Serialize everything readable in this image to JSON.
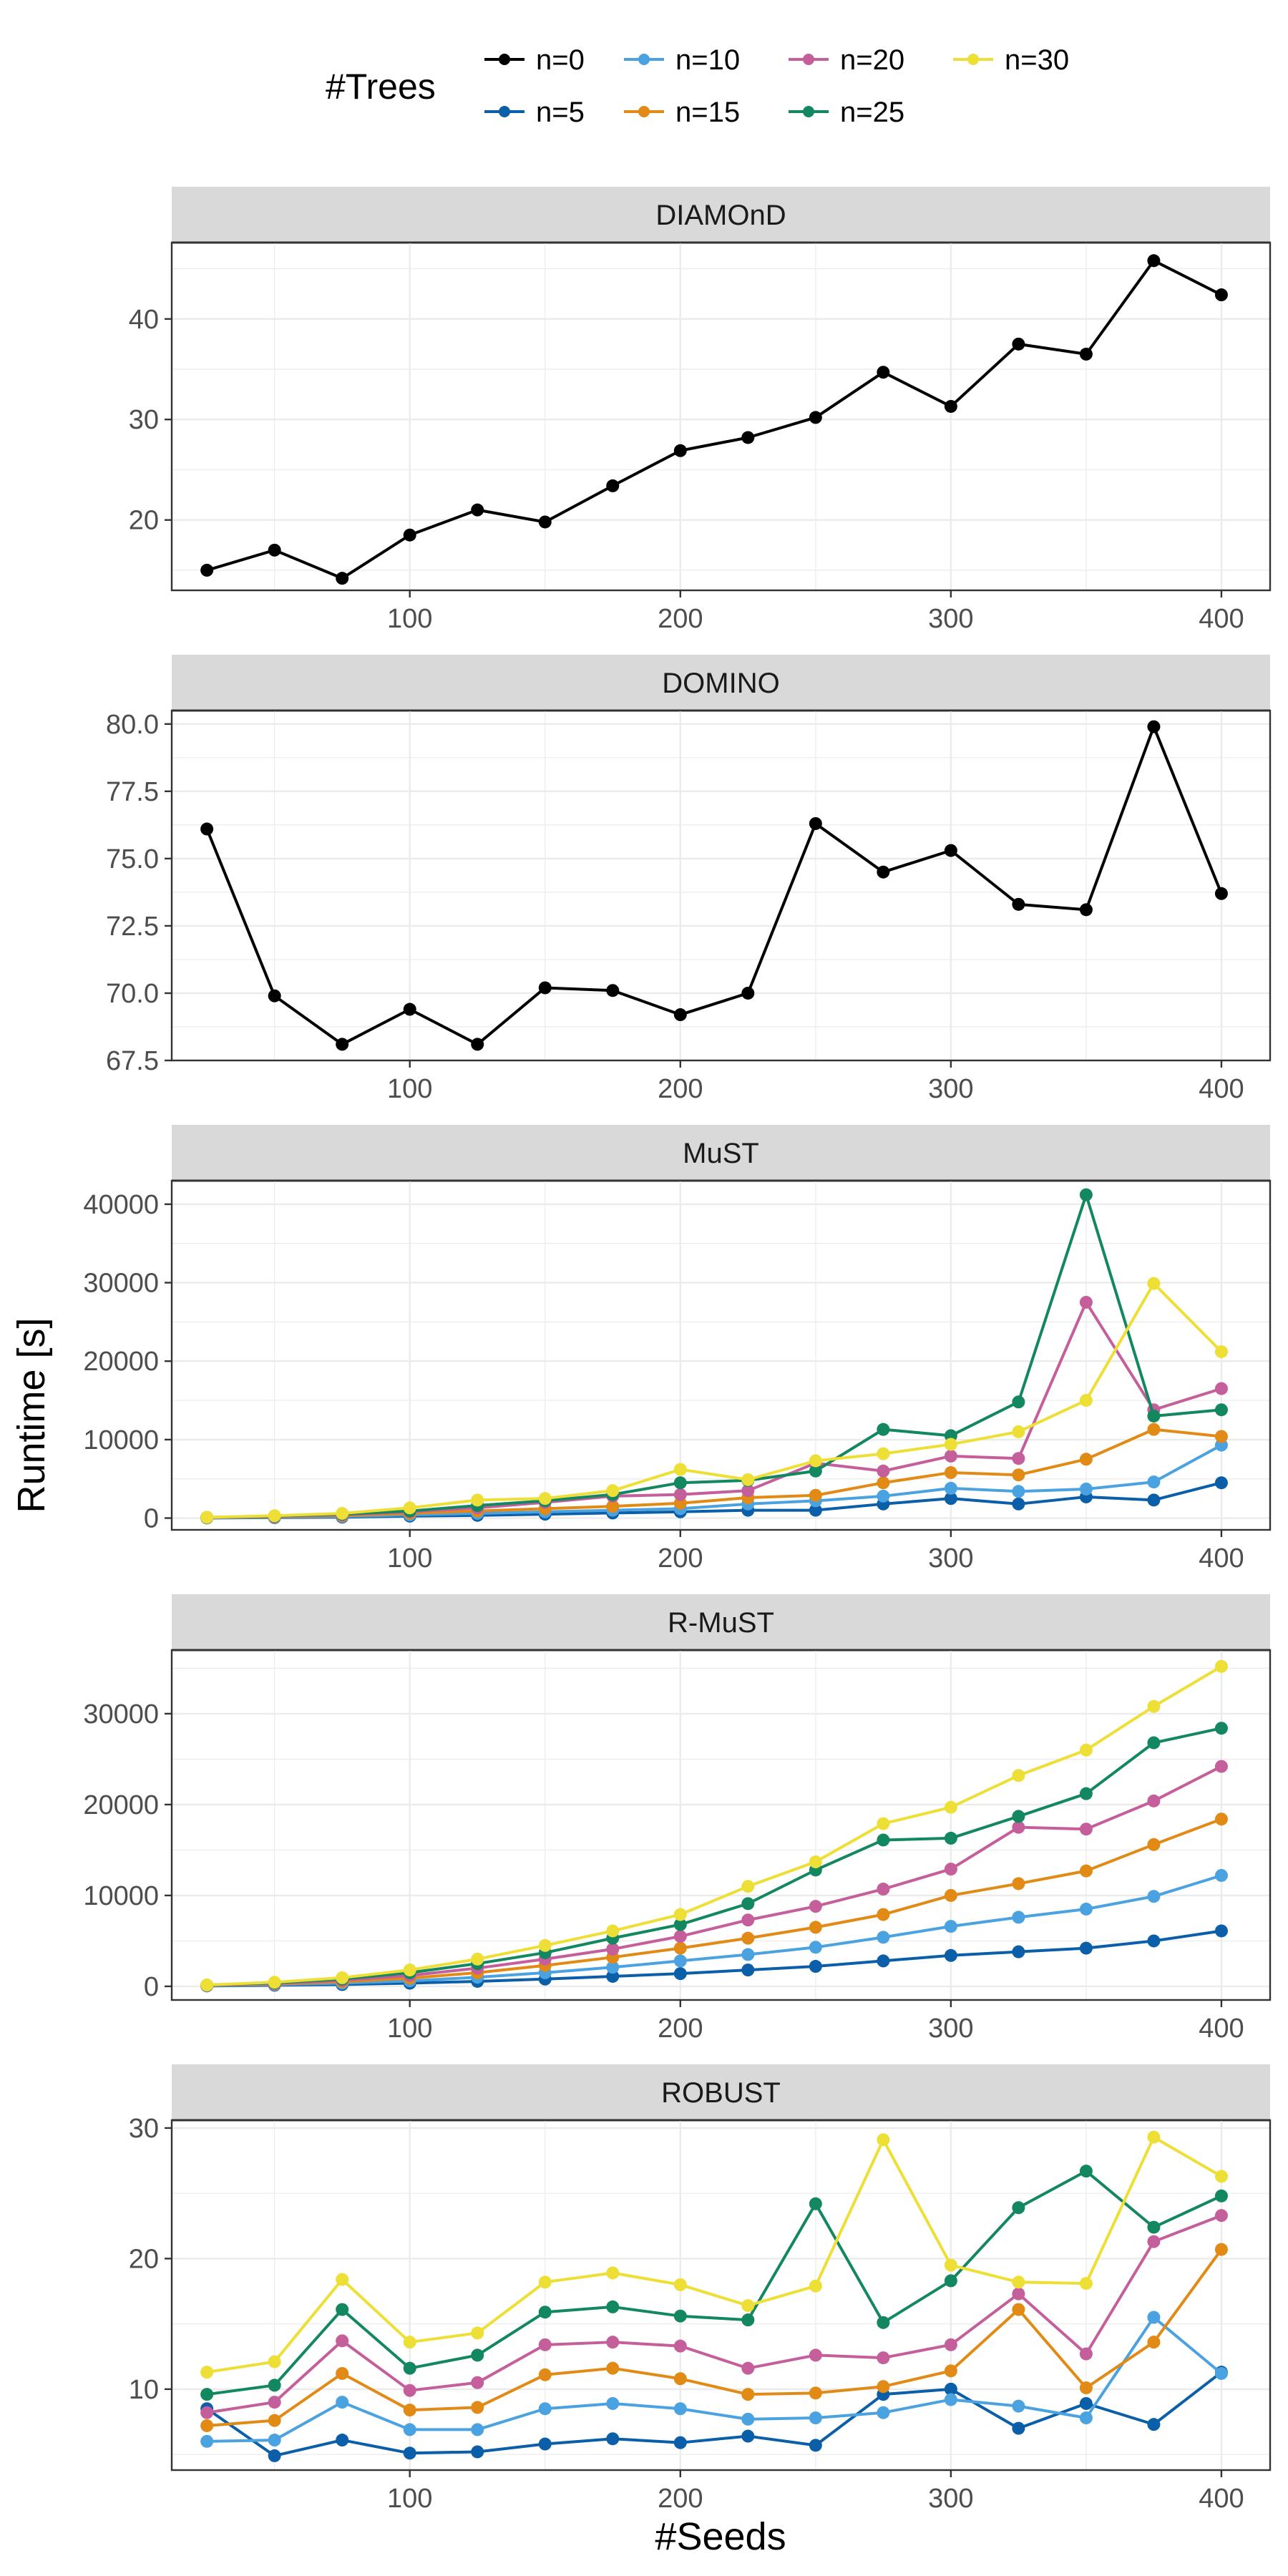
{
  "legend": {
    "title": "#Trees",
    "entries": [
      {
        "label": "n=0",
        "color": "#000000"
      },
      {
        "label": "n=5",
        "color": "#0b5ea8"
      },
      {
        "label": "n=10",
        "color": "#4aa3e0"
      },
      {
        "label": "n=15",
        "color": "#e28a16"
      },
      {
        "label": "n=20",
        "color": "#c55f9b"
      },
      {
        "label": "n=25",
        "color": "#13875f"
      },
      {
        "label": "n=30",
        "color": "#eedf36"
      }
    ]
  },
  "axes": {
    "xlabel": "#Seeds",
    "ylabel": "Runtime [s]"
  },
  "chart_data": [
    {
      "type": "line",
      "title": "DIAMOnD",
      "x": [
        25,
        50,
        75,
        100,
        125,
        150,
        175,
        200,
        225,
        250,
        275,
        300,
        325,
        350,
        375,
        400
      ],
      "xlim": [
        12,
        418
      ],
      "ylim": [
        13,
        47.6
      ],
      "yticks": [
        20,
        30,
        40
      ],
      "ytick_labels": [
        "20",
        "30",
        "40"
      ],
      "xticks": [
        100,
        200,
        300,
        400
      ],
      "xtick_labels": [
        "100",
        "200",
        "300",
        "400"
      ],
      "series": [
        {
          "name": "n=0",
          "values": [
            15.0,
            17.0,
            14.2,
            18.5,
            21.0,
            19.8,
            23.4,
            26.9,
            28.2,
            30.2,
            34.7,
            31.3,
            37.5,
            36.5,
            45.8,
            42.4
          ]
        }
      ]
    },
    {
      "type": "line",
      "title": "DOMINO",
      "x": [
        25,
        50,
        75,
        100,
        125,
        150,
        175,
        200,
        225,
        250,
        275,
        300,
        325,
        350,
        375,
        400
      ],
      "xlim": [
        12,
        418
      ],
      "ylim": [
        67.5,
        80.5
      ],
      "yticks": [
        67.5,
        70.0,
        72.5,
        75.0,
        77.5,
        80.0
      ],
      "ytick_labels": [
        "67.5",
        "70.0",
        "72.5",
        "75.0",
        "77.5",
        "80.0"
      ],
      "xticks": [
        100,
        200,
        300,
        400
      ],
      "xtick_labels": [
        "100",
        "200",
        "300",
        "400"
      ],
      "series": [
        {
          "name": "n=0",
          "values": [
            76.1,
            69.9,
            68.1,
            69.4,
            68.1,
            70.2,
            70.1,
            69.2,
            70.0,
            76.3,
            74.5,
            75.3,
            73.3,
            73.1,
            79.9,
            73.7
          ]
        }
      ]
    },
    {
      "type": "line",
      "title": "MuST",
      "x": [
        25,
        50,
        75,
        100,
        125,
        150,
        175,
        200,
        225,
        250,
        275,
        300,
        325,
        350,
        375,
        400
      ],
      "xlim": [
        12,
        418
      ],
      "ylim": [
        -1500,
        43000
      ],
      "yticks": [
        0,
        10000,
        20000,
        30000,
        40000
      ],
      "ytick_labels": [
        "0",
        "10000",
        "20000",
        "30000",
        "40000"
      ],
      "xticks": [
        100,
        200,
        300,
        400
      ],
      "xtick_labels": [
        "100",
        "200",
        "300",
        "400"
      ],
      "series": [
        {
          "name": "n=5",
          "values": [
            20,
            60,
            120,
            250,
            350,
            500,
            650,
            800,
            1000,
            1000,
            1800,
            2500,
            1800,
            2700,
            2300,
            4500
          ]
        },
        {
          "name": "n=10",
          "values": [
            40,
            100,
            200,
            400,
            600,
            800,
            1000,
            1200,
            1800,
            2200,
            2800,
            3800,
            3400,
            3700,
            4600,
            9300
          ]
        },
        {
          "name": "n=15",
          "values": [
            60,
            150,
            300,
            600,
            900,
            1200,
            1500,
            1900,
            2600,
            2900,
            4500,
            5800,
            5500,
            7500,
            11300,
            10400
          ]
        },
        {
          "name": "n=20",
          "values": [
            80,
            200,
            400,
            800,
            1300,
            2000,
            2800,
            3000,
            3500,
            7000,
            6000,
            7900,
            7600,
            27500,
            13800,
            16500
          ]
        },
        {
          "name": "n=25",
          "values": [
            90,
            250,
            500,
            900,
            1600,
            2200,
            3000,
            4500,
            4800,
            6000,
            11300,
            10500,
            14800,
            41200,
            13000,
            13800
          ]
        },
        {
          "name": "n=30",
          "values": [
            100,
            300,
            600,
            1300,
            2300,
            2500,
            3500,
            6200,
            4900,
            7300,
            8200,
            9400,
            11000,
            15000,
            29900,
            21200
          ]
        }
      ]
    },
    {
      "type": "line",
      "title": "R-MuST",
      "x": [
        25,
        50,
        75,
        100,
        125,
        150,
        175,
        200,
        225,
        250,
        275,
        300,
        325,
        350,
        375,
        400
      ],
      "xlim": [
        12,
        418
      ],
      "ylim": [
        -1500,
        37000
      ],
      "yticks": [
        0,
        10000,
        20000,
        30000
      ],
      "ytick_labels": [
        "0",
        "10000",
        "20000",
        "30000"
      ],
      "xticks": [
        100,
        200,
        300,
        400
      ],
      "xtick_labels": [
        "100",
        "200",
        "300",
        "400"
      ],
      "series": [
        {
          "name": "n=5",
          "values": [
            50,
            120,
            200,
            350,
            550,
            800,
            1100,
            1400,
            1800,
            2200,
            2800,
            3400,
            3800,
            4200,
            5000,
            6100
          ]
        },
        {
          "name": "n=10",
          "values": [
            70,
            180,
            350,
            600,
            1000,
            1500,
            2100,
            2800,
            3500,
            4300,
            5400,
            6600,
            7600,
            8500,
            9900,
            12200
          ]
        },
        {
          "name": "n=15",
          "values": [
            90,
            250,
            500,
            900,
            1500,
            2300,
            3200,
            4200,
            5300,
            6500,
            7900,
            10000,
            11300,
            12700,
            15600,
            18400
          ]
        },
        {
          "name": "n=20",
          "values": [
            110,
            300,
            650,
            1200,
            2000,
            3000,
            4100,
            5500,
            7300,
            8800,
            10700,
            12900,
            17500,
            17300,
            20400,
            24200
          ]
        },
        {
          "name": "n=25",
          "values": [
            130,
            380,
            800,
            1500,
            2500,
            3700,
            5300,
            6800,
            9100,
            12800,
            16100,
            16300,
            18700,
            21200,
            26800,
            28400
          ]
        },
        {
          "name": "n=30",
          "values": [
            150,
            450,
            950,
            1800,
            3000,
            4500,
            6100,
            7900,
            11000,
            13700,
            17900,
            19700,
            23200,
            26000,
            30800,
            35200
          ]
        }
      ]
    },
    {
      "type": "line",
      "title": "ROBUST",
      "x": [
        25,
        50,
        75,
        100,
        125,
        150,
        175,
        200,
        225,
        250,
        275,
        300,
        325,
        350,
        375,
        400
      ],
      "xlim": [
        12,
        418
      ],
      "ylim": [
        3.8,
        30.6
      ],
      "yticks": [
        10,
        20,
        30
      ],
      "ytick_labels": [
        "10",
        "20",
        "30"
      ],
      "xticks": [
        100,
        200,
        300,
        400
      ],
      "xtick_labels": [
        "100",
        "200",
        "300",
        "400"
      ],
      "series": [
        {
          "name": "n=5",
          "values": [
            8.5,
            4.9,
            6.1,
            5.1,
            5.2,
            5.8,
            6.2,
            5.9,
            6.4,
            5.7,
            9.6,
            10.0,
            7.0,
            8.9,
            7.3,
            11.3
          ]
        },
        {
          "name": "n=10",
          "values": [
            6.0,
            6.1,
            9.0,
            6.9,
            6.9,
            8.5,
            8.9,
            8.5,
            7.7,
            7.8,
            8.2,
            9.2,
            8.7,
            7.8,
            15.5,
            11.2
          ]
        },
        {
          "name": "n=15",
          "values": [
            7.2,
            7.6,
            11.2,
            8.4,
            8.6,
            11.1,
            11.6,
            10.8,
            9.6,
            9.7,
            10.2,
            11.4,
            16.1,
            10.1,
            13.6,
            20.7
          ]
        },
        {
          "name": "n=20",
          "values": [
            8.2,
            9.0,
            13.7,
            9.9,
            10.5,
            13.4,
            13.6,
            13.3,
            11.6,
            12.6,
            12.4,
            13.4,
            17.3,
            12.7,
            21.3,
            23.3
          ]
        },
        {
          "name": "n=25",
          "values": [
            9.6,
            10.3,
            16.1,
            11.6,
            12.6,
            15.9,
            16.3,
            15.6,
            15.3,
            24.2,
            15.1,
            18.3,
            23.9,
            26.7,
            22.4,
            24.8
          ]
        },
        {
          "name": "n=30",
          "values": [
            11.3,
            12.1,
            18.4,
            13.6,
            14.3,
            18.2,
            18.9,
            18.0,
            16.4,
            17.9,
            29.1,
            19.5,
            18.2,
            18.1,
            29.3,
            26.3
          ]
        }
      ]
    }
  ]
}
